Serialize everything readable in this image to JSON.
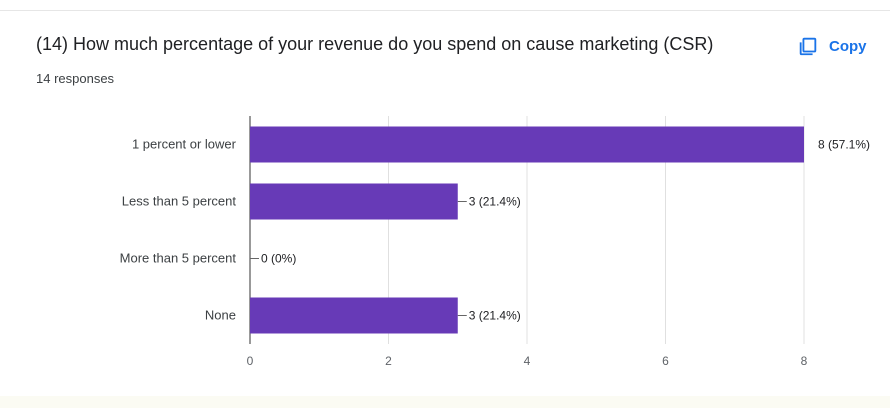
{
  "question": {
    "title": "(14) How much percentage of your revenue do you spend on cause marketing (CSR)",
    "responses": "14 responses"
  },
  "copy": {
    "label": "Copy",
    "icon": "copy-icon"
  },
  "colors": {
    "bar": "#673ab7",
    "accent": "#1a73e8",
    "grid": "#e0e0e0",
    "text": "#3c4043"
  },
  "chart_data": {
    "type": "bar",
    "orientation": "horizontal",
    "title": "",
    "categories": [
      "1 percent or lower",
      "Less than 5 percent",
      "More than 5 percent",
      "None"
    ],
    "values": [
      8,
      3,
      0,
      3
    ],
    "data_labels": [
      "8 (57.1%)",
      "3 (21.4%)",
      "0 (0%)",
      "3 (21.4%)"
    ],
    "xlim": [
      0,
      8
    ],
    "xticks": [
      "0",
      "2",
      "4",
      "6",
      "8"
    ],
    "xlabel": "",
    "ylabel": "",
    "grid": true
  }
}
